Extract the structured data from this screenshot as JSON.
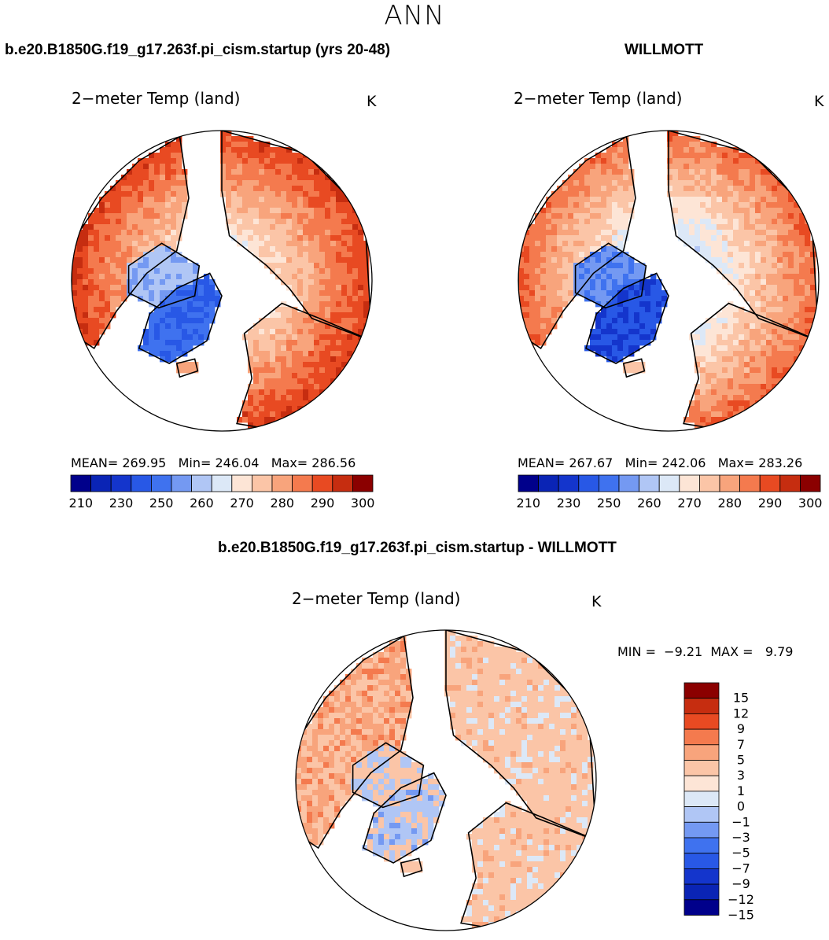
{
  "season": "ANN",
  "colors": {
    "ocean": "#ffffff",
    "coast": "#000000",
    "abs_scale": [
      "#00008b",
      "#0a24b5",
      "#1435cc",
      "#2858e6",
      "#3f72ef",
      "#7499f2",
      "#b0c6f5",
      "#dce8f7",
      "#fde5d6",
      "#fbc5a7",
      "#f8a47c",
      "#f47a4e",
      "#e84a22",
      "#c62d10",
      "#8b0000"
    ],
    "diff_scale": [
      "#00008b",
      "#0a24b5",
      "#1435cc",
      "#2858e6",
      "#3f72ef",
      "#7499f2",
      "#b0c6f5",
      "#dce8f7",
      "#fde5d6",
      "#fbc5a7",
      "#f8a47c",
      "#f47a4e",
      "#e84a22",
      "#c62d10",
      "#8b0000"
    ]
  },
  "panel_left": {
    "case_title": "b.e20.B1850G.f19_g17.263f.pi_cism.startup (yrs 20-48)",
    "var_title": "2−meter Temp (land)",
    "unit": "K",
    "mean_label": "MEAN=",
    "mean": "269.95",
    "min_label": "Min=",
    "min": "246.04",
    "max_label": "Max=",
    "max": "286.56"
  },
  "panel_right": {
    "case_title": "WILLMOTT",
    "var_title": "2−meter Temp (land)",
    "unit": "K",
    "mean_label": "MEAN=",
    "mean": "267.67",
    "min_label": "Min=",
    "min": "242.06",
    "max_label": "Max=",
    "max": "283.26"
  },
  "panel_diff": {
    "case_title": "b.e20.B1850G.f19_g17.263f.pi_cism.startup - WILLMOTT",
    "var_title": "2−meter Temp (land)",
    "unit": "K",
    "min_label": "MIN =",
    "min": "−9.21",
    "max_label": "MAX =",
    "max": "9.79"
  },
  "chart_data": [
    {
      "type": "heatmap",
      "projection": "north-polar-stereographic",
      "title": "2−meter Temp (land)",
      "units": "K",
      "mean": 269.95,
      "min": 246.04,
      "max": 286.56,
      "colorbar_ticks": [
        "210",
        "230",
        "250",
        "260",
        "270",
        "280",
        "290",
        "300"
      ],
      "contour_levels": [
        210,
        220,
        230,
        240,
        250,
        255,
        260,
        265,
        270,
        275,
        280,
        285,
        290,
        295,
        300
      ]
    },
    {
      "type": "heatmap",
      "projection": "north-polar-stereographic",
      "title": "2−meter Temp (land)",
      "units": "K",
      "mean": 267.67,
      "min": 242.06,
      "max": 283.26,
      "colorbar_ticks": [
        "210",
        "230",
        "250",
        "260",
        "270",
        "280",
        "290",
        "300"
      ],
      "contour_levels": [
        210,
        220,
        230,
        240,
        250,
        255,
        260,
        265,
        270,
        275,
        280,
        285,
        290,
        295,
        300
      ]
    },
    {
      "type": "heatmap",
      "projection": "north-polar-stereographic",
      "title": "2−meter Temp (land)",
      "units": "K",
      "min": -9.21,
      "max": 9.79,
      "colorbar_ticks": [
        "15",
        "12",
        "9",
        "7",
        "5",
        "3",
        "1",
        "0",
        "−1",
        "−3",
        "−5",
        "−7",
        "−9",
        "−12",
        "−15"
      ],
      "contour_levels": [
        -15,
        -12,
        -9,
        -7,
        -5,
        -3,
        -1,
        0,
        1,
        3,
        5,
        7,
        9,
        12,
        15
      ]
    }
  ]
}
